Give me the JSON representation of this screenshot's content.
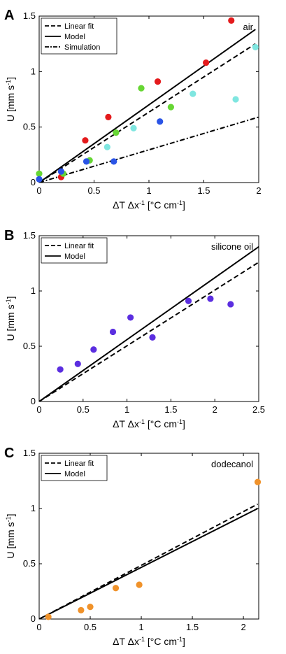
{
  "chart_data": [
    {
      "type": "scatter",
      "panel_label": "A",
      "annotation": "air",
      "xlabel": "ΔT Δx⁻¹ [°C cm⁻¹]",
      "ylabel": "U [mm s⁻¹]",
      "xlim": [
        0,
        2
      ],
      "ylim": [
        0,
        1.5
      ],
      "xticks": [
        0,
        0.5,
        1,
        1.5,
        2
      ],
      "xtick_labels": [
        "0",
        "0.5",
        "1",
        "1.5",
        "2"
      ],
      "yticks": [
        0,
        0.5,
        1,
        1.5
      ],
      "ytick_labels": [
        "0",
        "0.5",
        "1",
        "1.5"
      ],
      "grid": false,
      "legend_position": "top-left",
      "legend": [
        {
          "label": "Linear fit",
          "style": "dashed"
        },
        {
          "label": "Model",
          "style": "solid"
        },
        {
          "label": "Simulation",
          "style": "dashdot"
        }
      ],
      "lines": [
        {
          "style": "dashed",
          "x": [
            0,
            1.97
          ],
          "y": [
            0,
            1.25
          ]
        },
        {
          "style": "solid",
          "x": [
            0,
            1.97
          ],
          "y": [
            0,
            1.38
          ]
        },
        {
          "style": "dashdot",
          "x": [
            0,
            2.0
          ],
          "y": [
            0,
            0.59
          ]
        }
      ],
      "series": [
        {
          "color": "#e41a1c",
          "points": [
            [
              0.2,
              0.05
            ],
            [
              0.42,
              0.38
            ],
            [
              0.63,
              0.59
            ],
            [
              1.08,
              0.91
            ],
            [
              1.52,
              1.08
            ],
            [
              1.75,
              1.46
            ]
          ]
        },
        {
          "color": "#66d633",
          "points": [
            [
              0.0,
              0.08
            ],
            [
              0.22,
              0.08
            ],
            [
              0.46,
              0.2
            ],
            [
              0.7,
              0.45
            ],
            [
              0.93,
              0.85
            ],
            [
              1.2,
              0.68
            ]
          ]
        },
        {
          "color": "#2a54e6",
          "points": [
            [
              0.0,
              0.03
            ],
            [
              0.2,
              0.1
            ],
            [
              0.43,
              0.19
            ],
            [
              0.68,
              0.19
            ],
            [
              1.1,
              0.55
            ]
          ]
        },
        {
          "color": "#7fe6e0",
          "points": [
            [
              0.62,
              0.32
            ],
            [
              0.86,
              0.49
            ],
            [
              1.4,
              0.8
            ],
            [
              1.79,
              0.75
            ],
            [
              1.97,
              1.22
            ]
          ]
        }
      ]
    },
    {
      "type": "scatter",
      "panel_label": "B",
      "annotation": "silicone oil",
      "xlabel": "ΔT Δx⁻¹ [°C cm⁻¹]",
      "ylabel": "U [mm s⁻¹]",
      "xlim": [
        0,
        2.5
      ],
      "ylim": [
        0,
        1.5
      ],
      "xticks": [
        0,
        0.5,
        1,
        1.5,
        2,
        2.5
      ],
      "xtick_labels": [
        "0",
        "0.5",
        "1",
        "1.5",
        "2",
        "2.5"
      ],
      "yticks": [
        0,
        0.5,
        1,
        1.5
      ],
      "ytick_labels": [
        "0",
        "0.5",
        "1",
        "1.5"
      ],
      "grid": false,
      "legend_position": "top-left",
      "legend": [
        {
          "label": "Linear fit",
          "style": "dashed"
        },
        {
          "label": "Model",
          "style": "solid"
        }
      ],
      "lines": [
        {
          "style": "dashed",
          "x": [
            0,
            2.5
          ],
          "y": [
            0,
            1.26
          ]
        },
        {
          "style": "solid",
          "x": [
            0,
            2.5
          ],
          "y": [
            0,
            1.4
          ]
        }
      ],
      "series": [
        {
          "color": "#5b2ee0",
          "points": [
            [
              0.24,
              0.29
            ],
            [
              0.44,
              0.34
            ],
            [
              0.62,
              0.47
            ],
            [
              0.84,
              0.63
            ],
            [
              1.04,
              0.76
            ],
            [
              1.29,
              0.58
            ],
            [
              1.7,
              0.91
            ],
            [
              1.95,
              0.93
            ],
            [
              2.18,
              0.88
            ]
          ]
        }
      ]
    },
    {
      "type": "scatter",
      "panel_label": "C",
      "annotation": "dodecanol",
      "xlabel": "ΔT Δx⁻¹ [°C cm⁻¹]",
      "ylabel": "U [mm s⁻¹]",
      "xlim": [
        0,
        2.15
      ],
      "ylim": [
        0,
        1.5
      ],
      "xticks": [
        0,
        0.5,
        1,
        1.5,
        2
      ],
      "xtick_labels": [
        "0",
        "0.5",
        "1",
        "1.5",
        "2"
      ],
      "yticks": [
        0,
        0.5,
        1,
        1.5
      ],
      "ytick_labels": [
        "0",
        "0.5",
        "1",
        "1.5"
      ],
      "grid": false,
      "legend_position": "top-left",
      "legend": [
        {
          "label": "Linear fit",
          "style": "dashed"
        },
        {
          "label": "Model",
          "style": "solid"
        }
      ],
      "lines": [
        {
          "style": "dashed",
          "x": [
            0,
            2.14
          ],
          "y": [
            0,
            1.04
          ]
        },
        {
          "style": "solid",
          "x": [
            0,
            2.14
          ],
          "y": [
            0,
            1.0
          ]
        }
      ],
      "series": [
        {
          "color": "#f0922a",
          "points": [
            [
              0.09,
              0.02
            ],
            [
              0.41,
              0.08
            ],
            [
              0.5,
              0.11
            ],
            [
              0.75,
              0.28
            ],
            [
              0.98,
              0.31
            ],
            [
              2.14,
              1.24
            ]
          ]
        }
      ]
    }
  ]
}
